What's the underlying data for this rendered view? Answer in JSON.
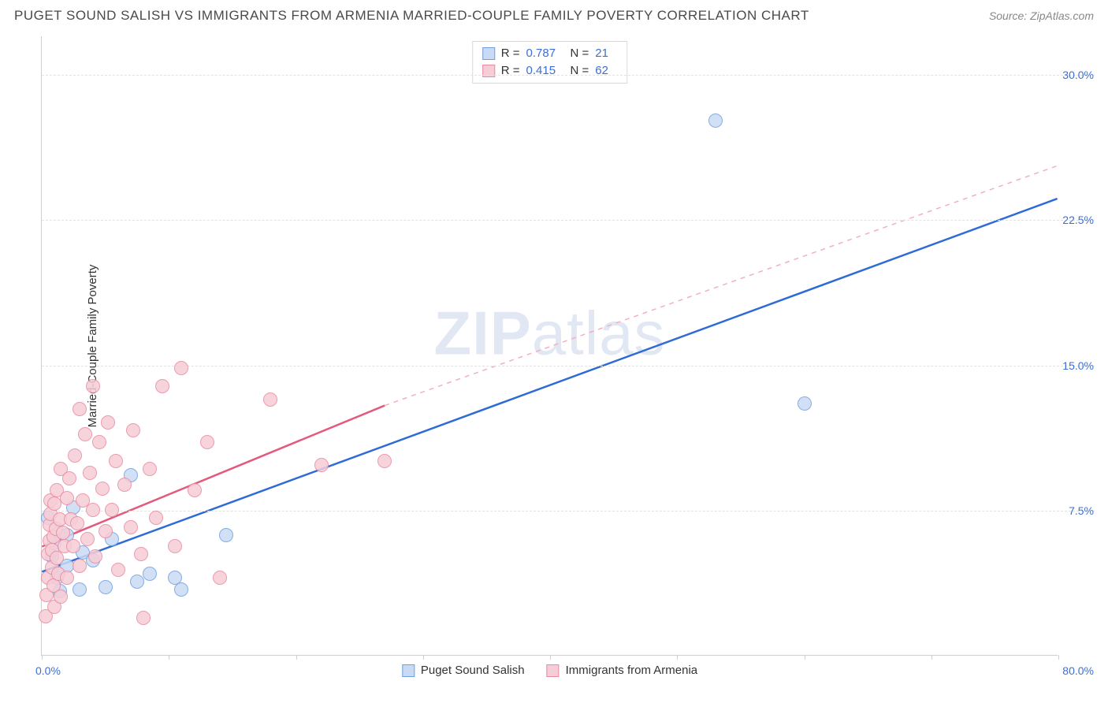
{
  "title": "PUGET SOUND SALISH VS IMMIGRANTS FROM ARMENIA MARRIED-COUPLE FAMILY POVERTY CORRELATION CHART",
  "source": "Source: ZipAtlas.com",
  "watermark_a": "ZIP",
  "watermark_b": "atlas",
  "yaxis_title": "Married-Couple Family Poverty",
  "chart": {
    "type": "scatter",
    "xlim": [
      0,
      80
    ],
    "ylim": [
      0,
      32
    ],
    "yticks": [
      7.5,
      15.0,
      22.5,
      30.0
    ],
    "ytick_labels": [
      "7.5%",
      "15.0%",
      "22.5%",
      "30.0%"
    ],
    "xtick_positions": [
      0,
      10,
      20,
      30,
      40,
      50,
      60,
      70,
      80
    ],
    "x0_label": "0.0%",
    "xmax_label": "80.0%",
    "background_color": "#ffffff",
    "grid_color": "#e2e2e2",
    "axis_color": "#cfcfcf",
    "marker_radius": 9,
    "line_width": 2.5,
    "series": [
      {
        "name": "Puget Sound Salish",
        "fill": "#c9dbf4",
        "stroke": "#6f9fe0",
        "line_color": "#2e6bd6",
        "dash_color": "#9db9ea",
        "R": "0.787",
        "N": "21",
        "trend_solid": {
          "x1": 0,
          "y1": 4.3,
          "x2": 80,
          "y2": 23.6
        },
        "trend_dash": null,
        "points": [
          [
            0.5,
            7.1
          ],
          [
            0.8,
            5.1
          ],
          [
            1.0,
            5.8
          ],
          [
            1.2,
            4.0
          ],
          [
            1.4,
            3.3
          ],
          [
            2.0,
            6.2
          ],
          [
            2.0,
            4.6
          ],
          [
            2.5,
            7.6
          ],
          [
            3.0,
            3.4
          ],
          [
            3.2,
            5.3
          ],
          [
            4.0,
            4.9
          ],
          [
            5.0,
            3.5
          ],
          [
            5.5,
            6.0
          ],
          [
            7.0,
            9.3
          ],
          [
            7.5,
            3.8
          ],
          [
            8.5,
            4.2
          ],
          [
            10.5,
            4.0
          ],
          [
            11.0,
            3.4
          ],
          [
            14.5,
            6.2
          ],
          [
            53.0,
            27.6
          ],
          [
            60.0,
            13.0
          ]
        ]
      },
      {
        "name": "Immigrants from Armenia",
        "fill": "#f6cdd7",
        "stroke": "#e88aa0",
        "line_color": "#e35a7d",
        "dash_color": "#f1b0bf",
        "R": "0.415",
        "N": "62",
        "trend_solid": {
          "x1": 0,
          "y1": 5.6,
          "x2": 27,
          "y2": 12.9
        },
        "trend_dash": {
          "x1": 27,
          "y1": 12.9,
          "x2": 80,
          "y2": 25.3
        },
        "points": [
          [
            0.3,
            2.0
          ],
          [
            0.4,
            3.1
          ],
          [
            0.5,
            4.0
          ],
          [
            0.5,
            5.2
          ],
          [
            0.6,
            5.9
          ],
          [
            0.6,
            6.7
          ],
          [
            0.7,
            7.3
          ],
          [
            0.7,
            8.0
          ],
          [
            0.8,
            4.5
          ],
          [
            0.8,
            5.4
          ],
          [
            0.9,
            6.1
          ],
          [
            0.9,
            3.6
          ],
          [
            1.0,
            7.8
          ],
          [
            1.0,
            2.5
          ],
          [
            1.1,
            6.5
          ],
          [
            1.2,
            8.5
          ],
          [
            1.2,
            5.0
          ],
          [
            1.3,
            4.2
          ],
          [
            1.4,
            7.0
          ],
          [
            1.5,
            9.6
          ],
          [
            1.5,
            3.0
          ],
          [
            1.7,
            6.3
          ],
          [
            1.8,
            5.6
          ],
          [
            2.0,
            8.1
          ],
          [
            2.0,
            4.0
          ],
          [
            2.2,
            9.1
          ],
          [
            2.3,
            7.0
          ],
          [
            2.5,
            5.6
          ],
          [
            2.6,
            10.3
          ],
          [
            2.8,
            6.8
          ],
          [
            3.0,
            12.7
          ],
          [
            3.0,
            4.6
          ],
          [
            3.2,
            8.0
          ],
          [
            3.4,
            11.4
          ],
          [
            3.6,
            6.0
          ],
          [
            3.8,
            9.4
          ],
          [
            4.0,
            7.5
          ],
          [
            4.0,
            13.9
          ],
          [
            4.2,
            5.1
          ],
          [
            4.5,
            11.0
          ],
          [
            4.8,
            8.6
          ],
          [
            5.0,
            6.4
          ],
          [
            5.2,
            12.0
          ],
          [
            5.5,
            7.5
          ],
          [
            5.8,
            10.0
          ],
          [
            6.0,
            4.4
          ],
          [
            6.5,
            8.8
          ],
          [
            7.0,
            6.6
          ],
          [
            7.2,
            11.6
          ],
          [
            7.8,
            5.2
          ],
          [
            8.0,
            1.9
          ],
          [
            8.5,
            9.6
          ],
          [
            9.0,
            7.1
          ],
          [
            9.5,
            13.9
          ],
          [
            10.5,
            5.6
          ],
          [
            11.0,
            14.8
          ],
          [
            12.0,
            8.5
          ],
          [
            13.0,
            11.0
          ],
          [
            14.0,
            4.0
          ],
          [
            18.0,
            13.2
          ],
          [
            22.0,
            9.8
          ],
          [
            27.0,
            10.0
          ]
        ]
      }
    ]
  },
  "legend_bottom": [
    {
      "label": "Puget Sound Salish",
      "fill": "#c9dbf4",
      "stroke": "#6f9fe0"
    },
    {
      "label": "Immigrants from Armenia",
      "fill": "#f6cdd7",
      "stroke": "#e88aa0"
    }
  ]
}
